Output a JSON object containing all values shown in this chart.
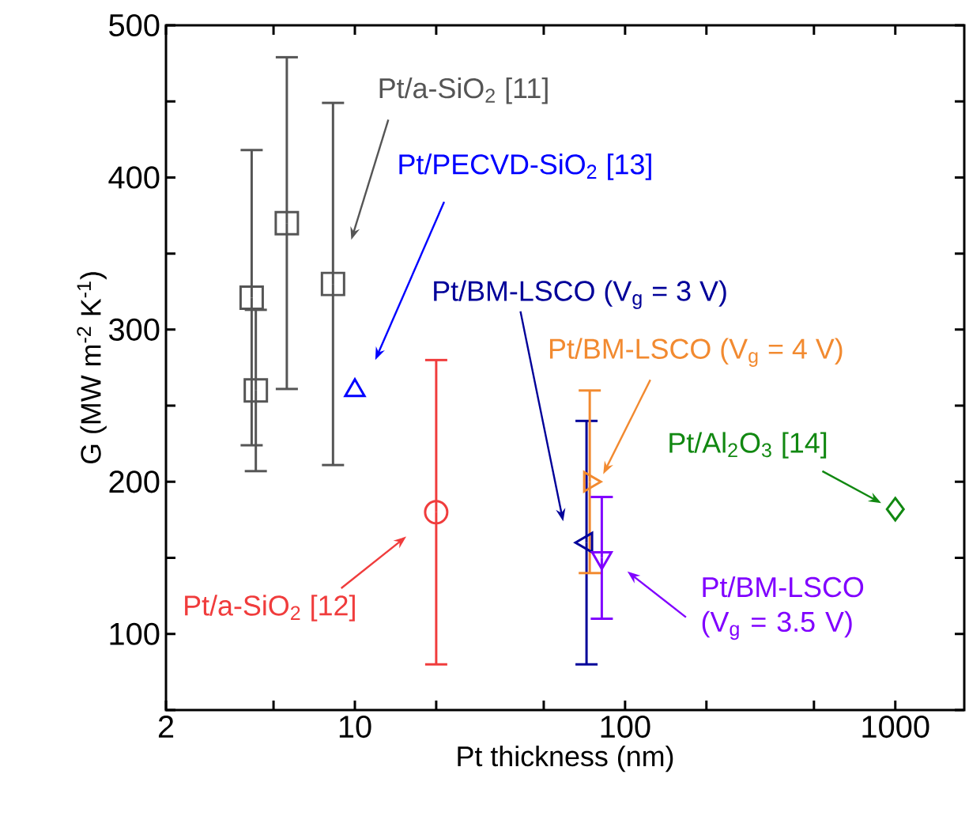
{
  "chart_data": {
    "type": "scatter",
    "xlabel": "Pt thickness (nm)",
    "ylabel": "G (MW m$^{-2}$ K$^{-1}$)",
    "log": "x",
    "xlim": [
      2,
      1800
    ],
    "ylim": [
      50,
      500
    ],
    "xticks": [
      2,
      {
        "value": 5,
        "label": null
      },
      10,
      {
        "value": 20,
        "label": null
      },
      {
        "value": 50,
        "label": null
      },
      100,
      {
        "value": 200,
        "label": null
      },
      {
        "value": 500,
        "label": null
      },
      1000
    ],
    "yticks": [
      {
        "value": 50,
        "label": null
      },
      100,
      {
        "value": 150,
        "label": null
      },
      200,
      {
        "value": 250,
        "label": null
      },
      300,
      {
        "value": 350,
        "label": null
      },
      400,
      {
        "value": 450,
        "label": null
      },
      500
    ],
    "series": [
      {
        "name": "Pt/a-SiO$_{2}$ [11]",
        "color": "#555555",
        "marker": "square",
        "x": [
          4.15,
          4.3,
          5.6,
          8.3
        ],
        "values": [
          321,
          260,
          370,
          330
        ],
        "errors": [
          97,
          53,
          109,
          119
        ]
      },
      {
        "name": "Pt/PECVD-SiO$_{2}$ [13]",
        "color": "#0000ff",
        "marker": "triangle",
        "x": [
          10
        ],
        "values": [
          260
        ]
      },
      {
        "name": "Pt/a-SiO$_{2}$ [12]",
        "color": "#f03c3c",
        "marker": "circle",
        "x": [
          20
        ],
        "values": [
          180
        ],
        "errors": [
          100
        ]
      },
      {
        "name": "Pt/BM-LSCO (V$_{g}$ = 3 V)",
        "color": "#000099",
        "marker": "triangle-left",
        "x": [
          72
        ],
        "values": [
          160
        ],
        "errors": [
          80
        ]
      },
      {
        "name": "Pt/BM-LSCO (V$_{g}$ = 4 V)",
        "color": "#f28a30",
        "marker": "triangle-right",
        "x": [
          74
        ],
        "values": [
          200
        ],
        "errors": [
          60
        ]
      },
      {
        "name": "Pt/BM-LSCO (V$_{g}$ = 3.5 V)",
        "color": "#8000ff",
        "marker": "triangle-down",
        "x": [
          82
        ],
        "values": [
          150
        ],
        "errors": [
          40
        ]
      },
      {
        "name": "Pt/Al$_{2}$O$_{3}$ [14]",
        "color": "#118811",
        "marker": "diamond",
        "x": [
          1000
        ],
        "values": [
          182
        ]
      }
    ]
  }
}
